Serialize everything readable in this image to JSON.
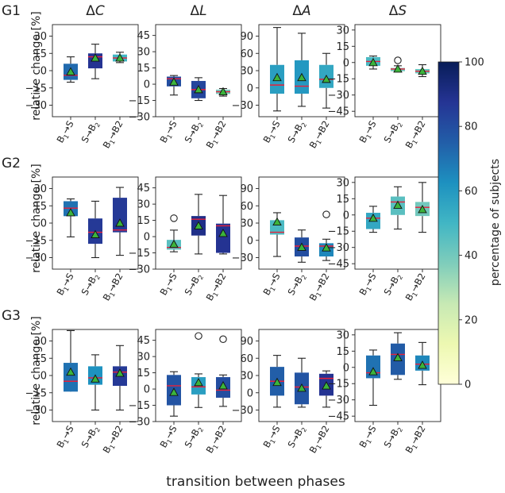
{
  "figure": {
    "x_caption": "transition between phases",
    "y_caption": "relative change [%]",
    "colorbar": {
      "label": "percentage of subjects",
      "ticks": [
        0,
        20,
        40,
        60,
        80,
        100
      ],
      "min": 0,
      "max": 100
    }
  },
  "chart_data": {
    "type": "boxplot",
    "rows": [
      "G1",
      "G2",
      "G3"
    ],
    "columns": [
      {
        "title_prefix": "Δ",
        "title_var": "C",
        "ylim": [
          -40,
          40
        ],
        "ticks": [
          30,
          15,
          0,
          -15,
          -30
        ]
      },
      {
        "title_prefix": "Δ",
        "title_var": "L",
        "ylim": [
          -30,
          55
        ],
        "ticks": [
          45,
          30,
          15,
          0,
          -15,
          -30
        ]
      },
      {
        "title_prefix": "Δ",
        "title_var": "A",
        "ylim": [
          -50,
          110
        ],
        "ticks": [
          90,
          60,
          30,
          0,
          -30
        ]
      },
      {
        "title_prefix": "Δ",
        "title_var": "S",
        "ylim": [
          -50,
          35
        ],
        "ticks": [
          30,
          15,
          0,
          -15,
          -30,
          -45
        ]
      }
    ],
    "categories": [
      {
        "main": "B",
        "sub": "1",
        "arrow": "→",
        "tail": "S",
        "tail_sub": ""
      },
      {
        "main": "S",
        "sub": "",
        "arrow": "→",
        "tail": "B",
        "tail_sub": "2"
      },
      {
        "main": "B",
        "sub": "1",
        "arrow": "→",
        "tail": "B2",
        "tail_sub": ""
      }
    ],
    "panels": [
      [
        [
          {
            "q1": -8,
            "q3": 6,
            "med": -4,
            "wlo": -10,
            "whi": 12,
            "mean": -1,
            "pct": 72,
            "outliers": []
          },
          {
            "q1": 2,
            "q3": 15,
            "med": 12,
            "wlo": -7,
            "whi": 23,
            "mean": 11,
            "pct": 88,
            "outliers": []
          },
          {
            "q1": 8,
            "q3": 14,
            "med": 11,
            "wlo": 7,
            "whi": 16,
            "mean": 11,
            "pct": 50,
            "outliers": []
          }
        ],
        [
          {
            "q1": -2,
            "q3": 7,
            "med": 5,
            "wlo": -10,
            "whi": 8,
            "mean": 2,
            "pct": 80,
            "outliers": []
          },
          {
            "q1": -13,
            "q3": 3,
            "med": -5,
            "wlo": -15,
            "whi": 6,
            "mean": -5,
            "pct": 82,
            "outliers": []
          },
          {
            "q1": -9,
            "q3": -5,
            "med": -7,
            "wlo": -11,
            "whi": -4,
            "mean": -7,
            "pct": 40,
            "outliers": []
          }
        ],
        [
          {
            "q1": -10,
            "q3": 40,
            "med": 5,
            "wlo": -40,
            "whi": 105,
            "mean": 18,
            "pct": 58,
            "outliers": []
          },
          {
            "q1": -10,
            "q3": 48,
            "med": 3,
            "wlo": -32,
            "whi": 95,
            "mean": 18,
            "pct": 60,
            "outliers": []
          },
          {
            "q1": 0,
            "q3": 40,
            "med": 15,
            "wlo": -35,
            "whi": 60,
            "mean": 15,
            "pct": 55,
            "outliers": []
          }
        ],
        [
          {
            "q1": -3,
            "q3": 5,
            "med": 1,
            "wlo": -6,
            "whi": 6,
            "mean": 0,
            "pct": 48,
            "outliers": []
          },
          {
            "q1": -8,
            "q3": -5,
            "med": -6,
            "wlo": -8,
            "whi": -3,
            "mean": -6,
            "pct": 40,
            "outliers": [
              2
            ]
          },
          {
            "q1": -10,
            "q3": -6,
            "med": -8,
            "wlo": -13,
            "whi": -2,
            "mean": -8,
            "pct": 42,
            "outliers": []
          }
        ]
      ],
      [
        [
          {
            "q1": 6,
            "q3": 19,
            "med": 13,
            "wlo": -12,
            "whi": 21,
            "mean": 9,
            "pct": 70,
            "outliers": []
          },
          {
            "q1": -18,
            "q3": 4,
            "med": -8,
            "wlo": -30,
            "whi": 19,
            "mean": -10,
            "pct": 86,
            "outliers": []
          },
          {
            "q1": -8,
            "q3": 22,
            "med": -6,
            "wlo": -28,
            "whi": 31,
            "mean": 0,
            "pct": 86,
            "outliers": []
          }
        ],
        [
          {
            "q1": -12,
            "q3": -3,
            "med": -10,
            "wlo": -14,
            "whi": 6,
            "mean": -7,
            "pct": 45,
            "outliers": [
              17
            ]
          },
          {
            "q1": 1,
            "q3": 19,
            "med": 16,
            "wlo": -16,
            "whi": 39,
            "mean": 10,
            "pct": 90,
            "outliers": []
          },
          {
            "q1": -15,
            "q3": 12,
            "med": 10,
            "wlo": -16,
            "whi": 38,
            "mean": 3,
            "pct": 88,
            "outliers": []
          }
        ],
        [
          {
            "q1": 10,
            "q3": 35,
            "med": 14,
            "wlo": -28,
            "whi": 48,
            "mean": 32,
            "pct": 48,
            "outliers": []
          },
          {
            "q1": -28,
            "q3": 5,
            "med": -10,
            "wlo": -38,
            "whi": 18,
            "mean": -12,
            "pct": 80,
            "outliers": []
          },
          {
            "q1": -28,
            "q3": -5,
            "med": -10,
            "wlo": -35,
            "whi": 2,
            "mean": -13,
            "pct": 65,
            "outliers": [
              45
            ]
          }
        ],
        [
          {
            "q1": -13,
            "q3": 2,
            "med": -3,
            "wlo": -16,
            "whi": 8,
            "mean": -3,
            "pct": 55,
            "outliers": []
          },
          {
            "q1": 0,
            "q3": 17,
            "med": 12,
            "wlo": -13,
            "whi": 26,
            "mean": 9,
            "pct": 45,
            "outliers": []
          },
          {
            "q1": -1,
            "q3": 12,
            "med": 7,
            "wlo": -16,
            "whi": 30,
            "mean": 5,
            "pct": 40,
            "outliers": []
          }
        ]
      ],
      [
        [
          {
            "q1": -14,
            "q3": 11,
            "med": -5,
            "wlo": -13,
            "whi": 39,
            "mean": 3,
            "pct": 70,
            "outliers": []
          },
          {
            "q1": -8,
            "q3": 8,
            "med": -2,
            "wlo": -30,
            "whi": 18,
            "mean": -3,
            "pct": 62,
            "outliers": []
          },
          {
            "q1": -9,
            "q3": 8,
            "med": 3,
            "wlo": -30,
            "whi": 26,
            "mean": 2,
            "pct": 86,
            "outliers": []
          }
        ],
        [
          {
            "q1": -15,
            "q3": 13,
            "med": 3,
            "wlo": -25,
            "whi": 16,
            "mean": -3,
            "pct": 78,
            "outliers": []
          },
          {
            "q1": -5,
            "q3": 11,
            "med": 2,
            "wlo": -17,
            "whi": 14,
            "mean": 6,
            "pct": 58,
            "outliers": [
              49
            ]
          },
          {
            "q1": -8,
            "q3": 11,
            "med": -1,
            "wlo": -16,
            "whi": 13,
            "mean": 3,
            "pct": 80,
            "outliers": [
              46
            ]
          }
        ],
        [
          {
            "q1": -5,
            "q3": 45,
            "med": 20,
            "wlo": -25,
            "whi": 65,
            "mean": 18,
            "pct": 75,
            "outliers": []
          },
          {
            "q1": -20,
            "q3": 35,
            "med": 10,
            "wlo": -25,
            "whi": 60,
            "mean": 8,
            "pct": 78,
            "outliers": []
          },
          {
            "q1": -5,
            "q3": 33,
            "med": 25,
            "wlo": -25,
            "whi": 38,
            "mean": 12,
            "pct": 88,
            "outliers": []
          }
        ],
        [
          {
            "q1": -10,
            "q3": 11,
            "med": -5,
            "wlo": -35,
            "whi": 16,
            "mean": -4,
            "pct": 70,
            "outliers": []
          },
          {
            "q1": -7,
            "q3": 22,
            "med": 12,
            "wlo": -11,
            "whi": 32,
            "mean": 9,
            "pct": 76,
            "outliers": []
          },
          {
            "q1": -3,
            "q3": 11,
            "med": 3,
            "wlo": -16,
            "whi": 23,
            "mean": 2,
            "pct": 65,
            "outliers": []
          }
        ]
      ]
    ]
  }
}
